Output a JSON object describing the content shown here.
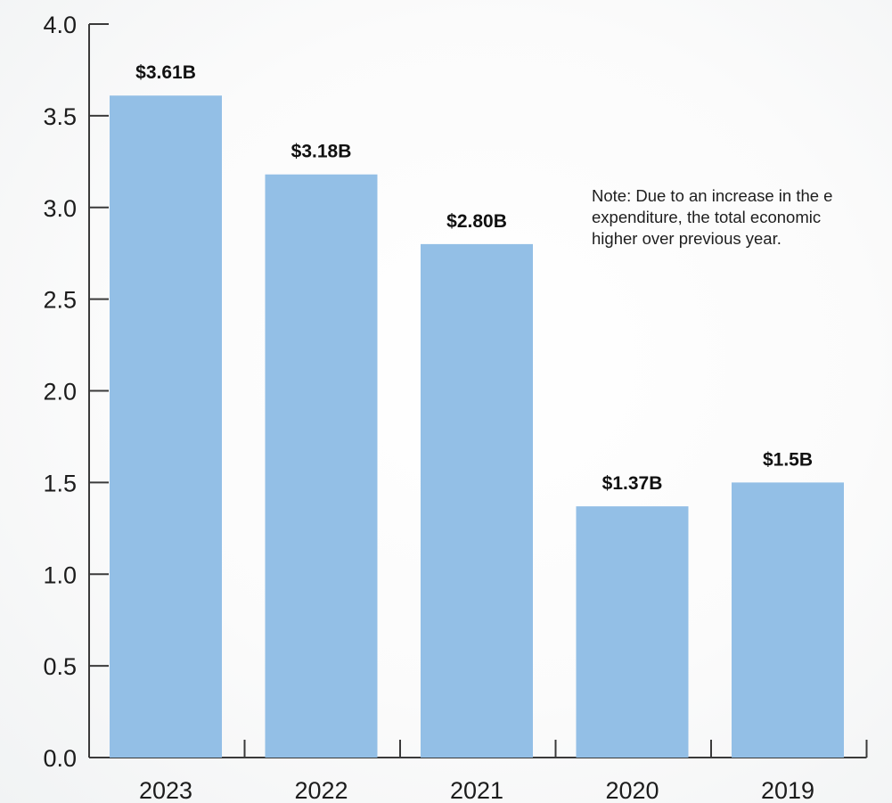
{
  "chart_data": {
    "type": "bar",
    "categories": [
      "2023",
      "2022",
      "2021",
      "2020",
      "2019"
    ],
    "values": [
      3.61,
      3.18,
      2.8,
      1.37,
      1.5
    ],
    "data_labels": [
      "$3.61B",
      "$3.18B",
      "$2.80B",
      "$1.37B",
      "$1.5B"
    ],
    "ylim": [
      0,
      4.0
    ],
    "yticks": [
      "0.0",
      "0.5",
      "1.0",
      "1.5",
      "2.0",
      "2.5",
      "3.0",
      "3.5",
      "4.0"
    ],
    "title": "",
    "xlabel": "",
    "ylabel": "",
    "grid": false,
    "bar_color": "#93bfe6",
    "note_lines": [
      "Note: Due to an increase in the e",
      "expenditure, the total economic",
      "higher over previous year."
    ]
  }
}
